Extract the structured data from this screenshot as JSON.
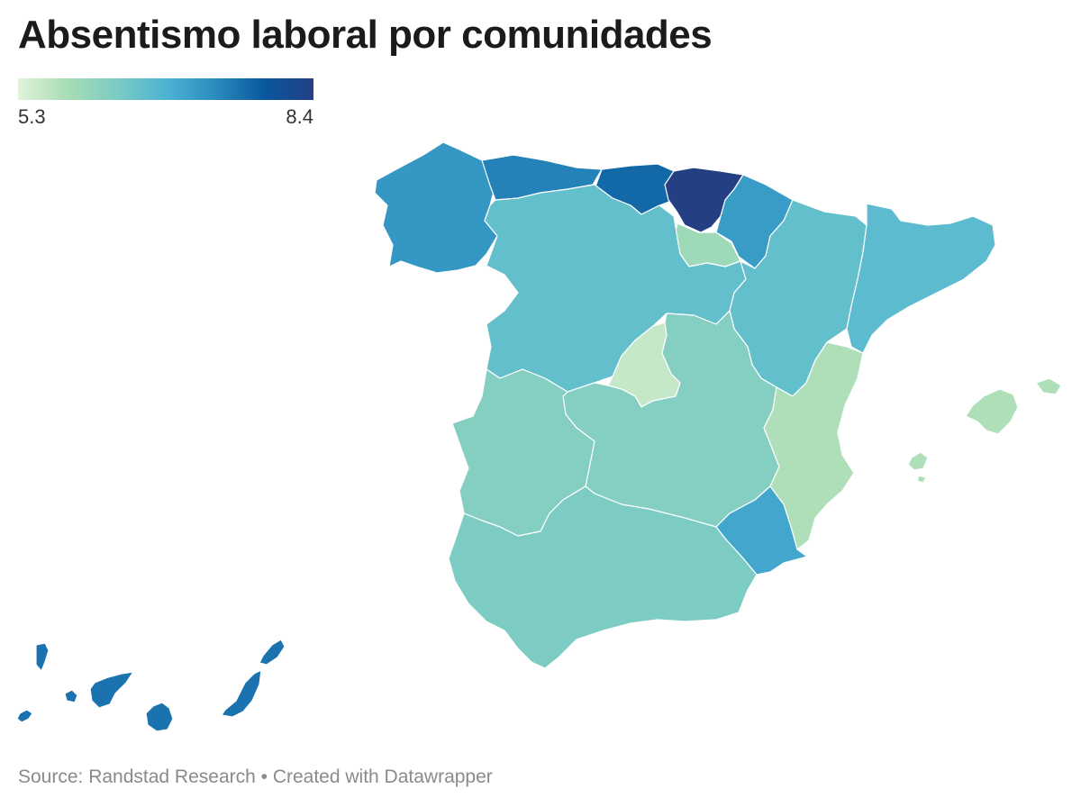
{
  "title": "Absentismo laboral por comunidades",
  "legend": {
    "min_label": "5.3",
    "max_label": "8.4",
    "min": 5.3,
    "max": 8.4,
    "colors": [
      "#e0f3db",
      "#a8ddb5",
      "#7bccc4",
      "#4eb3d3",
      "#2b8cbe",
      "#08589e",
      "#253f85"
    ]
  },
  "regions": [
    {
      "id": "galicia",
      "level": 0.62
    },
    {
      "id": "asturias",
      "level": 0.7
    },
    {
      "id": "cantabria",
      "level": 0.78
    },
    {
      "id": "pais-vasco",
      "level": 1.0
    },
    {
      "id": "navarra",
      "level": 0.6
    },
    {
      "id": "la-rioja",
      "level": 0.2
    },
    {
      "id": "castilla-y-leon",
      "level": 0.42
    },
    {
      "id": "aragon",
      "level": 0.42
    },
    {
      "id": "cataluna",
      "level": 0.45
    },
    {
      "id": "madrid",
      "level": 0.08
    },
    {
      "id": "castilla-la-mancha",
      "level": 0.3
    },
    {
      "id": "extremadura",
      "level": 0.3
    },
    {
      "id": "comunidad-valenciana",
      "level": 0.15
    },
    {
      "id": "murcia",
      "level": 0.55
    },
    {
      "id": "andalucia",
      "level": 0.33
    },
    {
      "id": "baleares",
      "level": 0.15
    },
    {
      "id": "canarias",
      "level": 0.75
    }
  ],
  "footer": "Source: Randstad Research • Created with Datawrapper"
}
